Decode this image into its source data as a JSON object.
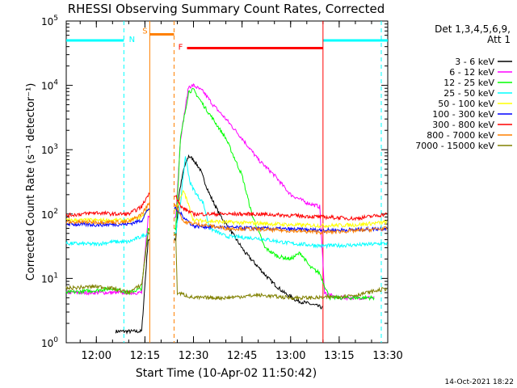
{
  "chart_data": {
    "type": "line",
    "title": "RHESSI Observing Summary Count Rates, Corrected",
    "xlabel": "Start Time (10-Apr-02 11:50:42)",
    "ylabel": "Corrected Count Rate (s⁻¹ detector⁻¹)",
    "y_scale": "log",
    "ylim": [
      1,
      100000
    ],
    "xlim": [
      "11:50:42",
      "13:30:00"
    ],
    "x_ticks": [
      "12:00",
      "12:15",
      "12:30",
      "12:45",
      "13:00",
      "13:15",
      "13:30"
    ],
    "y_ticks": [
      {
        "value": 1,
        "base": "10",
        "exp": "0"
      },
      {
        "value": 10,
        "base": "10",
        "exp": "1"
      },
      {
        "value": 100,
        "base": "10",
        "exp": "2"
      },
      {
        "value": 1000,
        "base": "10",
        "exp": "3"
      },
      {
        "value": 10000,
        "base": "10",
        "exp": "4"
      },
      {
        "value": 100000,
        "base": "10",
        "exp": "5"
      }
    ],
    "legend_title": [
      "Det 1,3,4,5,6,9,",
      "Att 1"
    ],
    "legend_position": "right",
    "flags": [
      {
        "label": "N",
        "color": "#00ffff",
        "segments": [
          [
            "11:50:42",
            "12:08:30"
          ],
          [
            "13:10:00",
            "13:30:00"
          ]
        ],
        "level": 50000,
        "boundaries": [
          "12:08:30",
          "13:28:00"
        ],
        "label_time": "12:11:00"
      },
      {
        "label": "S",
        "color": "#ff8000",
        "segments": [
          [
            "12:16:30",
            "12:24:00"
          ]
        ],
        "level": 62000,
        "boundaries": [
          "12:16:30",
          "12:24:00"
        ],
        "label_time": "12:15:00"
      },
      {
        "label": "F",
        "color": "#ff0000",
        "segments": [
          [
            "12:28:00",
            "13:10:00"
          ]
        ],
        "level": 38000,
        "boundaries": [
          "13:10:00"
        ],
        "label_time": "12:26:00"
      }
    ],
    "gap": [
      "12:16:30",
      "12:24:00"
    ],
    "series": [
      {
        "name": "3 - 6 keV",
        "color": "#000000",
        "points": [
          [
            "11:50:42",
            null
          ],
          [
            "12:06:00",
            1.5
          ],
          [
            "12:10:00",
            1.5
          ],
          [
            "12:14:00",
            1.5
          ],
          [
            "12:15:00",
            8
          ],
          [
            "12:16:00",
            40
          ],
          [
            "12:24:30",
            40
          ],
          [
            "12:25:30",
            200
          ],
          [
            "12:27:00",
            500
          ],
          [
            "12:28:30",
            800
          ],
          [
            "12:30:00",
            700
          ],
          [
            "12:32:00",
            500
          ],
          [
            "12:35:00",
            200
          ],
          [
            "12:38:00",
            100
          ],
          [
            "12:42:00",
            50
          ],
          [
            "12:46:00",
            25
          ],
          [
            "12:50:00",
            15
          ],
          [
            "12:54:00",
            9
          ],
          [
            "12:58:00",
            6
          ],
          [
            "13:02:00",
            4.5
          ],
          [
            "13:06:00",
            4
          ],
          [
            "13:10:00",
            3.5
          ]
        ]
      },
      {
        "name": "6 - 12 keV",
        "color": "#ff00ff",
        "points": [
          [
            "11:50:42",
            6
          ],
          [
            "12:00:00",
            6
          ],
          [
            "12:05:00",
            6
          ],
          [
            "12:10:00",
            6
          ],
          [
            "12:14:00",
            6
          ],
          [
            "12:16:00",
            90
          ],
          [
            "12:24:30",
            90
          ],
          [
            "12:26:00",
            1500
          ],
          [
            "12:28:30",
            9500
          ],
          [
            "12:30:00",
            10000
          ],
          [
            "12:33:00",
            8000
          ],
          [
            "12:36:00",
            5000
          ],
          [
            "12:40:00",
            3000
          ],
          [
            "12:45:00",
            1500
          ],
          [
            "12:50:00",
            700
          ],
          [
            "12:55:00",
            400
          ],
          [
            "13:00:00",
            200
          ],
          [
            "13:05:00",
            150
          ],
          [
            "13:09:00",
            130
          ],
          [
            "13:10:30",
            6
          ],
          [
            "13:14:00",
            5
          ],
          [
            "13:20:00",
            5
          ],
          [
            "13:26:00",
            5
          ]
        ]
      },
      {
        "name": "12 - 25 keV",
        "color": "#00ff00",
        "points": [
          [
            "11:50:42",
            6
          ],
          [
            "12:00:00",
            6.5
          ],
          [
            "12:05:00",
            7
          ],
          [
            "12:10:00",
            6
          ],
          [
            "12:14:00",
            7
          ],
          [
            "12:16:00",
            60
          ],
          [
            "12:24:30",
            60
          ],
          [
            "12:26:00",
            1500
          ],
          [
            "12:28:30",
            8000
          ],
          [
            "12:30:00",
            8500
          ],
          [
            "12:33:00",
            5000
          ],
          [
            "12:36:00",
            3000
          ],
          [
            "12:40:00",
            1500
          ],
          [
            "12:45:00",
            400
          ],
          [
            "12:48:00",
            100
          ],
          [
            "12:52:00",
            30
          ],
          [
            "12:56:00",
            22
          ],
          [
            "13:00:00",
            20
          ],
          [
            "13:03:00",
            25
          ],
          [
            "13:06:00",
            15
          ],
          [
            "13:09:00",
            12
          ],
          [
            "13:12:00",
            5
          ],
          [
            "13:20:00",
            5
          ],
          [
            "13:26:00",
            5
          ]
        ]
      },
      {
        "name": "25 - 50 keV",
        "color": "#00ffff",
        "points": [
          [
            "11:50:42",
            35
          ],
          [
            "12:00:00",
            34
          ],
          [
            "12:05:00",
            37
          ],
          [
            "12:10:00",
            37
          ],
          [
            "12:14:00",
            45
          ],
          [
            "12:16:00",
            50
          ],
          [
            "12:24:30",
            50
          ],
          [
            "12:26:00",
            150
          ],
          [
            "12:27:30",
            800
          ],
          [
            "12:29:00",
            300
          ],
          [
            "12:31:00",
            200
          ],
          [
            "12:33:00",
            150
          ],
          [
            "12:35:00",
            60
          ],
          [
            "12:40:00",
            45
          ],
          [
            "12:50:00",
            42
          ],
          [
            "13:00:00",
            35
          ],
          [
            "13:10:00",
            32
          ],
          [
            "13:20:00",
            33
          ],
          [
            "13:30:00",
            35
          ]
        ]
      },
      {
        "name": "50 - 100 keV",
        "color": "#ffff00",
        "points": [
          [
            "11:50:42",
            80
          ],
          [
            "12:00:00",
            80
          ],
          [
            "12:10:00",
            80
          ],
          [
            "12:14:00",
            90
          ],
          [
            "12:16:00",
            120
          ],
          [
            "12:24:30",
            120
          ],
          [
            "12:27:00",
            230
          ],
          [
            "12:30:00",
            80
          ],
          [
            "12:40:00",
            75
          ],
          [
            "12:50:00",
            72
          ],
          [
            "13:00:00",
            68
          ],
          [
            "13:10:00",
            66
          ],
          [
            "13:20:00",
            68
          ],
          [
            "13:30:00",
            75
          ]
        ]
      },
      {
        "name": "100 - 300 keV",
        "color": "#0000ff",
        "points": [
          [
            "11:50:42",
            70
          ],
          [
            "12:00:00",
            68
          ],
          [
            "12:10:00",
            70
          ],
          [
            "12:14:00",
            80
          ],
          [
            "12:16:00",
            120
          ],
          [
            "12:24:30",
            120
          ],
          [
            "12:27:00",
            90
          ],
          [
            "12:30:00",
            65
          ],
          [
            "12:40:00",
            62
          ],
          [
            "12:50:00",
            60
          ],
          [
            "13:00:00",
            58
          ],
          [
            "13:10:00",
            56
          ],
          [
            "13:20:00",
            57
          ],
          [
            "13:30:00",
            60
          ]
        ]
      },
      {
        "name": "300 - 800 keV",
        "color": "#ff0000",
        "points": [
          [
            "11:50:42",
            95
          ],
          [
            "12:00:00",
            105
          ],
          [
            "12:05:00",
            100
          ],
          [
            "12:10:00",
            100
          ],
          [
            "12:14:00",
            130
          ],
          [
            "12:16:00",
            200
          ],
          [
            "12:24:30",
            200
          ],
          [
            "12:26:00",
            130
          ],
          [
            "12:30:00",
            100
          ],
          [
            "12:40:00",
            100
          ],
          [
            "12:50:00",
            100
          ],
          [
            "13:00:00",
            95
          ],
          [
            "13:10:00",
            90
          ],
          [
            "13:20:00",
            85
          ],
          [
            "13:30:00",
            100
          ]
        ]
      },
      {
        "name": "800 - 7000 keV",
        "color": "#ff8000",
        "points": [
          [
            "11:50:42",
            75
          ],
          [
            "12:00:00",
            75
          ],
          [
            "12:10:00",
            75
          ],
          [
            "12:14:00",
            100
          ],
          [
            "12:16:00",
            140
          ],
          [
            "12:24:30",
            140
          ],
          [
            "12:27:00",
            75
          ],
          [
            "12:40:00",
            60
          ],
          [
            "12:50:00",
            58
          ],
          [
            "13:00:00",
            55
          ],
          [
            "13:10:00",
            52
          ],
          [
            "13:20:00",
            55
          ],
          [
            "13:30:00",
            60
          ]
        ]
      },
      {
        "name": "7000 - 15000 keV",
        "color": "#808000",
        "points": [
          [
            "11:50:42",
            7
          ],
          [
            "12:00:00",
            7.5
          ],
          [
            "12:05:00",
            7
          ],
          [
            "12:10:00",
            6
          ],
          [
            "12:14:00",
            8
          ],
          [
            "12:16:00",
            50
          ],
          [
            "12:24:30",
            50
          ],
          [
            "12:25:00",
            6
          ],
          [
            "12:30:00",
            5
          ],
          [
            "12:40:00",
            5
          ],
          [
            "12:50:00",
            5.5
          ],
          [
            "13:00:00",
            5
          ],
          [
            "13:10:00",
            5
          ],
          [
            "13:20:00",
            5.5
          ],
          [
            "13:30:00",
            7
          ]
        ]
      }
    ]
  },
  "timestamp": "14-Oct-2021 18:22"
}
